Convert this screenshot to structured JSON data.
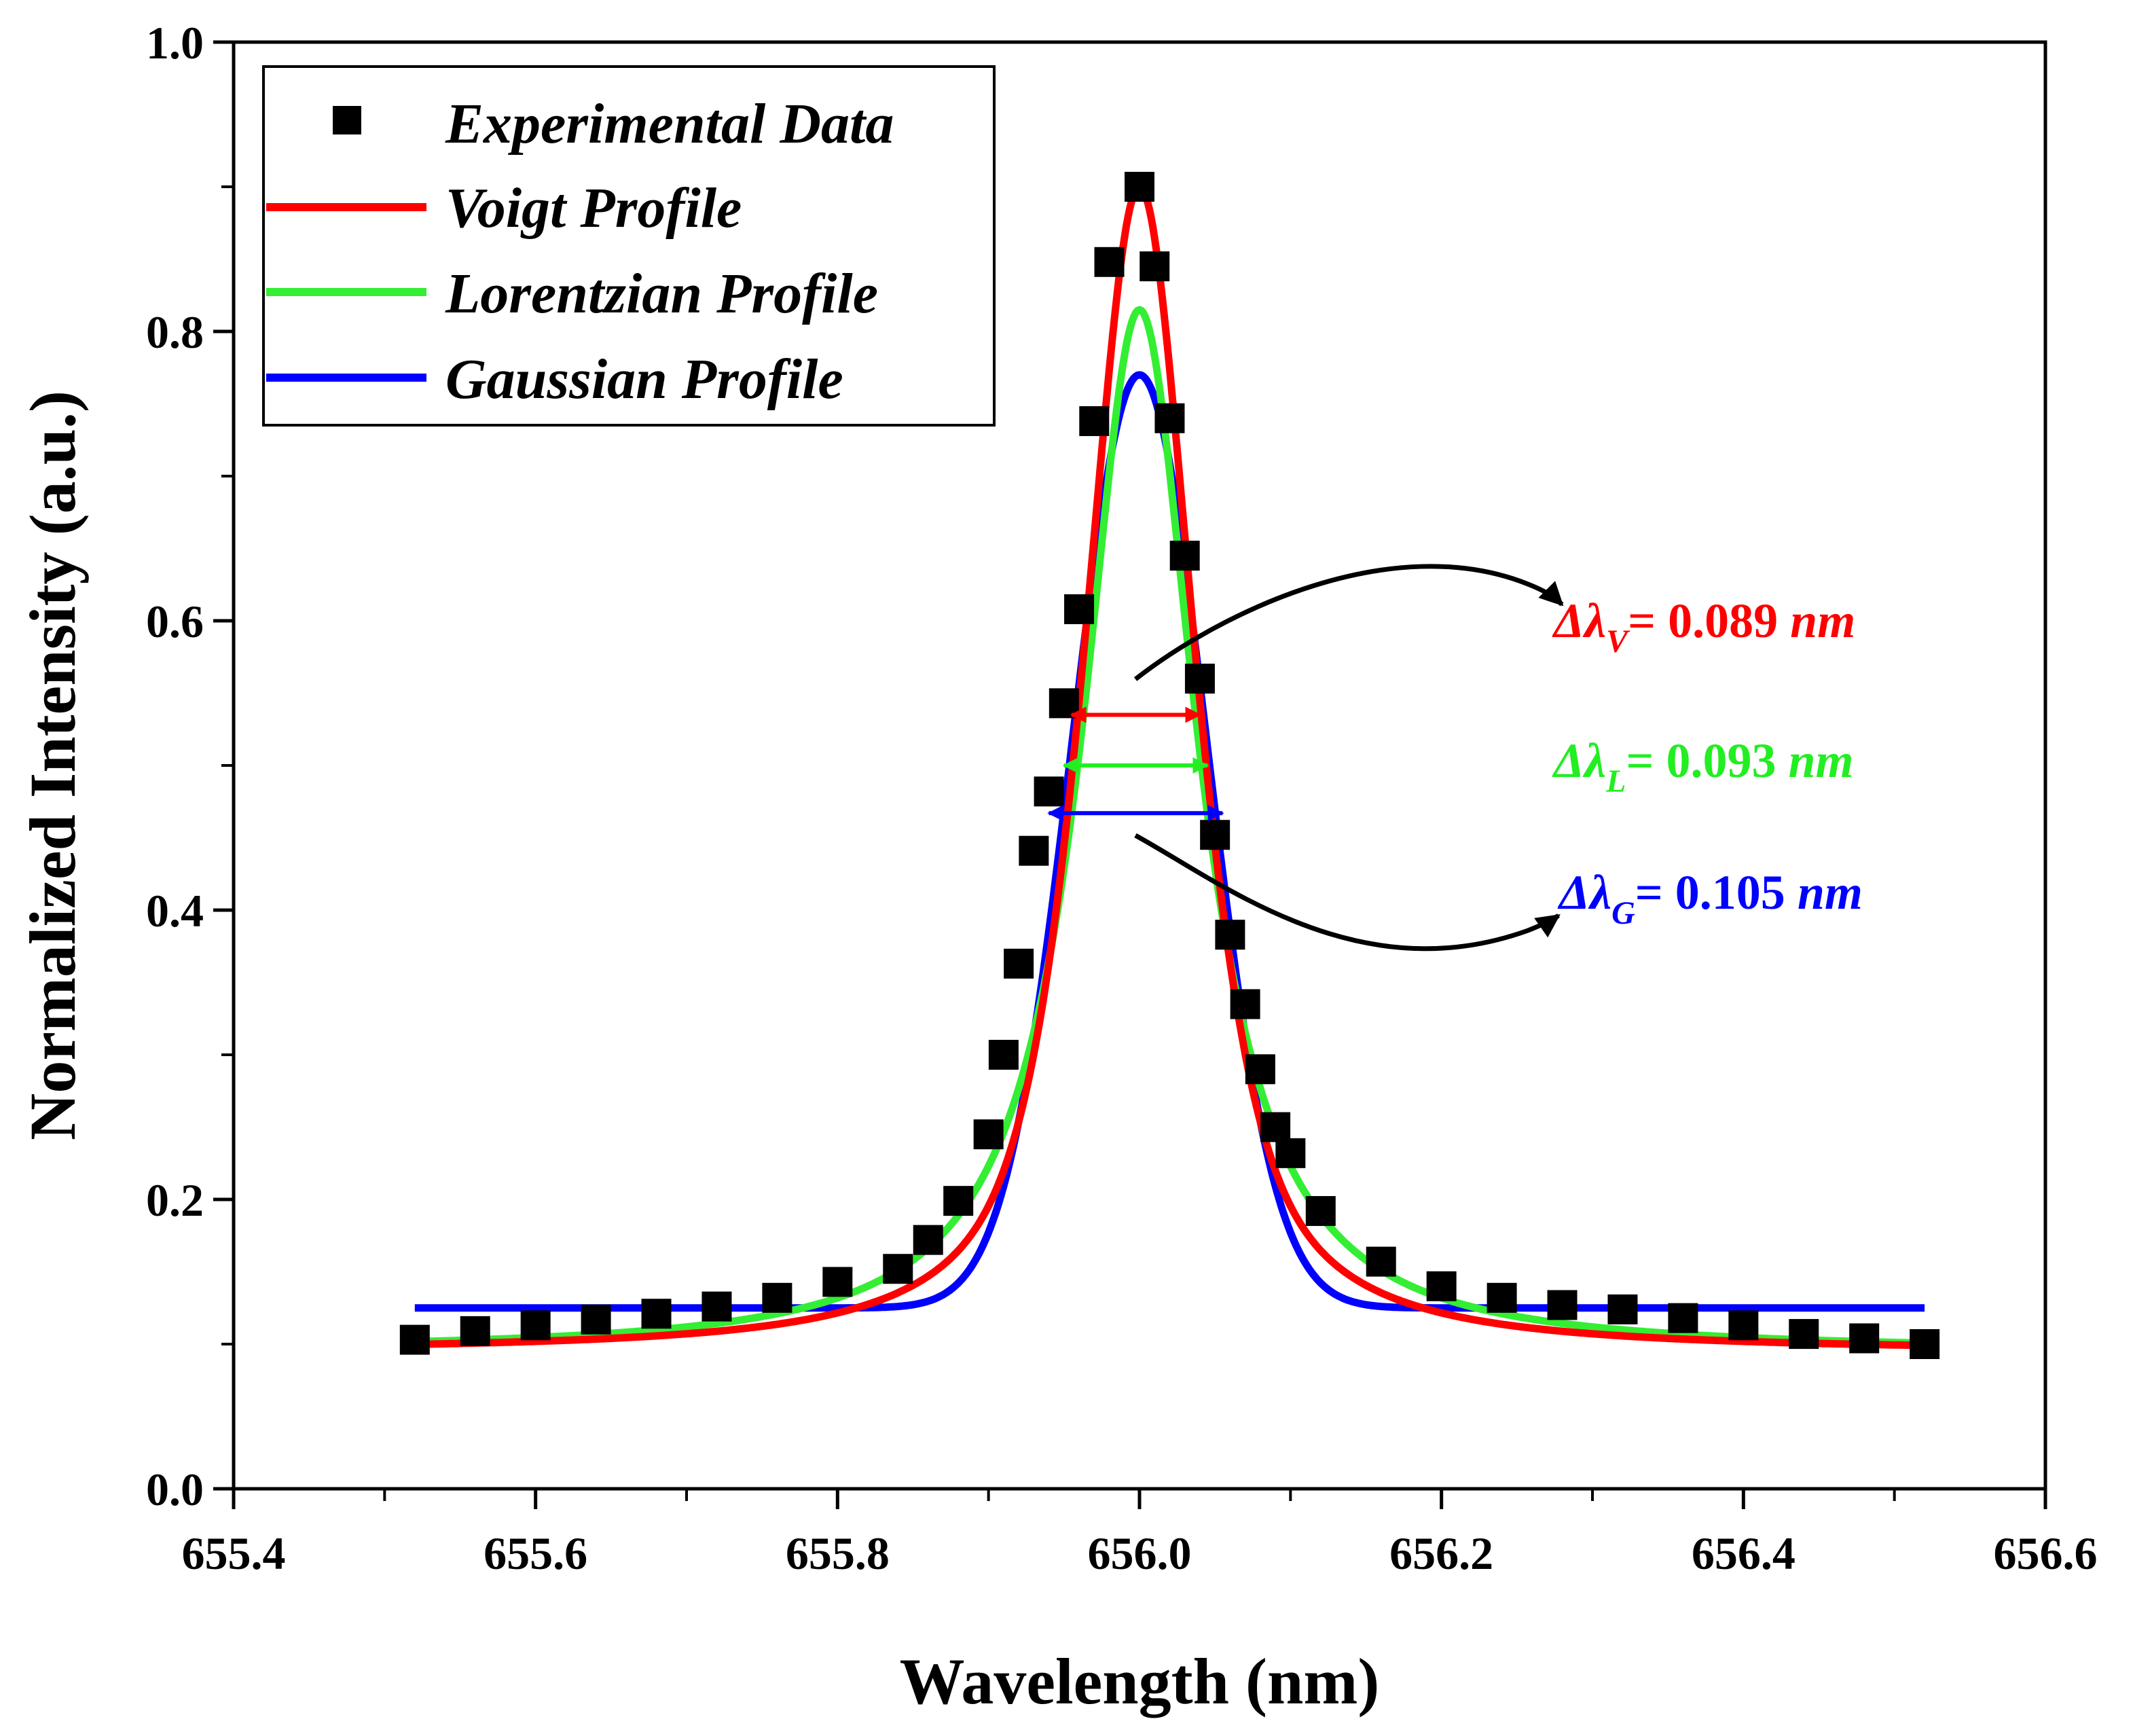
{
  "chart_data": {
    "type": "line",
    "title": "",
    "xlabel": "Wavelength (nm)",
    "ylabel": "Normalized Intensity (a.u.)",
    "xlim": [
      655.4,
      656.6
    ],
    "ylim": [
      0.0,
      1.0
    ],
    "x_ticks": [
      655.4,
      655.6,
      655.8,
      656.0,
      656.2,
      656.4,
      656.6
    ],
    "x_tick_labels": [
      "655.4",
      "655.6",
      "655.8",
      "656.0",
      "656.2",
      "656.4",
      "656.6"
    ],
    "y_ticks": [
      0.0,
      0.2,
      0.4,
      0.6,
      0.8,
      1.0
    ],
    "y_tick_labels": [
      "0.0",
      "0.2",
      "0.4",
      "0.6",
      "0.8",
      "1.0"
    ],
    "grid": false,
    "legend_position": "top-left",
    "scatter_series": {
      "name": "Experimental Data",
      "color": "#000000",
      "marker": "square",
      "x": [
        655.52,
        655.56,
        655.6,
        655.64,
        655.68,
        655.72,
        655.76,
        655.8,
        655.84,
        655.86,
        655.88,
        655.9,
        655.91,
        655.92,
        655.93,
        655.94,
        655.95,
        655.96,
        655.97,
        655.98,
        656.0,
        656.01,
        656.02,
        656.03,
        656.04,
        656.05,
        656.06,
        656.07,
        656.08,
        656.09,
        656.1,
        656.12,
        656.16,
        656.2,
        656.24,
        656.28,
        656.32,
        656.36,
        656.4,
        656.44,
        656.48,
        656.52
      ],
      "y": [
        0.103,
        0.109,
        0.113,
        0.117,
        0.121,
        0.126,
        0.132,
        0.143,
        0.152,
        0.172,
        0.199,
        0.245,
        0.3,
        0.363,
        0.441,
        0.482,
        0.543,
        0.608,
        0.738,
        0.848,
        0.9,
        0.845,
        0.74,
        0.645,
        0.56,
        0.452,
        0.383,
        0.335,
        0.29,
        0.25,
        0.232,
        0.192,
        0.157,
        0.14,
        0.132,
        0.127,
        0.124,
        0.118,
        0.113,
        0.107,
        0.104,
        0.1
      ]
    },
    "series": [
      {
        "name": "Voigt Profile",
        "color": "#ff0000",
        "peak": 0.9,
        "fwhm_nm": 0.089,
        "center": 656.0,
        "baseline": 0.095
      },
      {
        "name": "Lorentzian Profile",
        "color": "#33ee33",
        "peak": 0.815,
        "fwhm_nm": 0.093,
        "center": 656.0,
        "baseline": 0.095
      },
      {
        "name": "Gaussian Profile",
        "color": "#0000ff",
        "peak": 0.77,
        "fwhm_nm": 0.105,
        "center": 656.0,
        "baseline": 0.125
      }
    ],
    "x_range": [
      655.52,
      656.52
    ],
    "annotations": [
      {
        "symbol": "Δλ",
        "sub": "V",
        "text": "= 0.089",
        "unit": "nm",
        "color": "#ff0000"
      },
      {
        "symbol": "Δλ",
        "sub": "L",
        "text": "= 0.093",
        "unit": "nm",
        "color": "#22ee22"
      },
      {
        "symbol": "Δλ",
        "sub": "G",
        "text": "= 0.105",
        "unit": "nm",
        "color": "#0000ff"
      }
    ],
    "fwhm_arrows": [
      {
        "y": 0.535,
        "x_start": 655.955,
        "x_end": 656.04,
        "color": "#ff0000"
      },
      {
        "y": 0.5,
        "x_start": 655.95,
        "x_end": 656.045,
        "color": "#22ee22"
      },
      {
        "y": 0.467,
        "x_start": 655.94,
        "x_end": 656.055,
        "color": "#0000ff"
      }
    ]
  }
}
